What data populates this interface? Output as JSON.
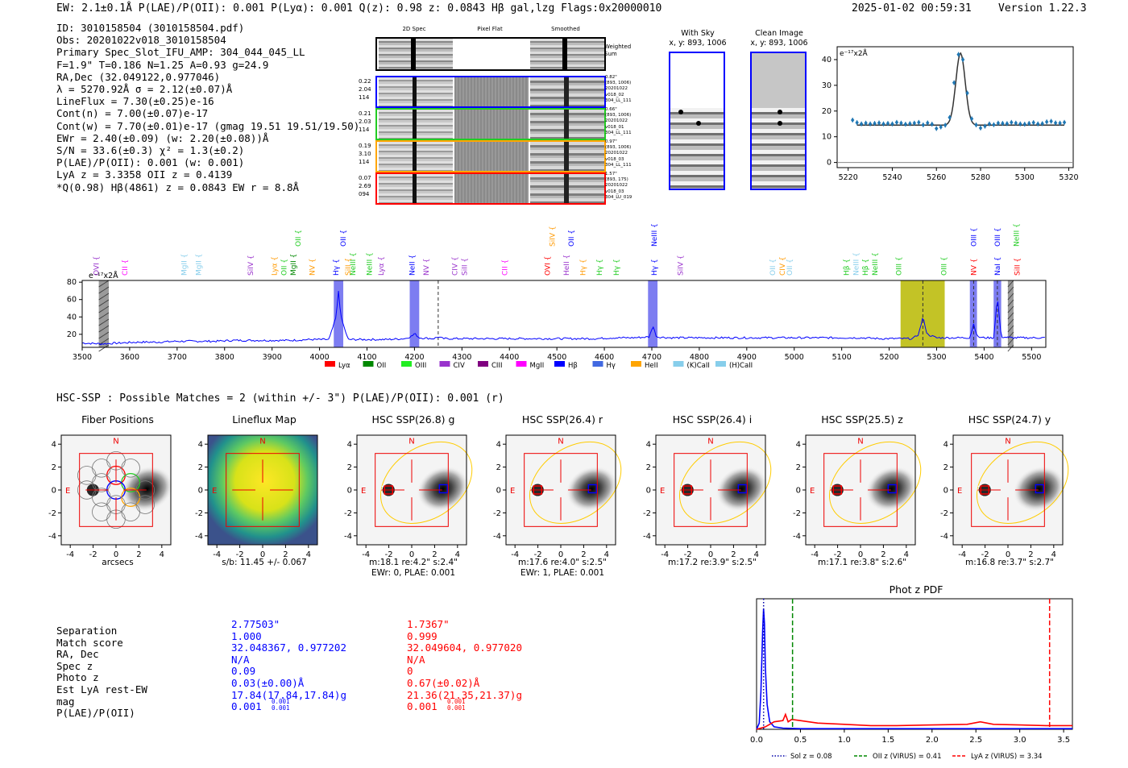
{
  "header": {
    "summary": "EW: 2.1±0.1Å  P(LAE)/P(OII): 0.001  P(Lyα): 0.001  Q(z): 0.98  z: 0.0843  Hβ  gal,lzg  Flags:0x20000010",
    "timestamp": "2025-01-02 00:59:31",
    "version": "Version 1.22.3"
  },
  "detection_info": [
    "ID: 3010158504 (3010158504.pdf)",
    "Obs: 20201022v018_3010158504",
    "Primary Spec_Slot_IFU_AMP: 304_044_045_LL",
    "F=1.9\"  T=0.186  N=1.25  A=0.93  g=24.9",
    "RA,Dec (32.049122,0.977046)",
    "λ = 5270.92Å  σ = 2.12(±0.07)Å",
    "LineFlux = 7.30(±0.25)e-16",
    "Cont(n) = 7.00(±0.07)e-17",
    "Cont(w) = 7.70(±0.01)e-17 (gmag 19.51 19.51/19.50)",
    "EWr = 2.40(±0.09) (w: 2.20(±0.08))Å",
    "S/N = 33.6(±0.3)  χ² = 1.3(±0.2)",
    "P(LAE)/P(OII): 0.001 (w: 0.001)",
    "LyA z = 3.3358  OII z = 0.4139",
    "*Q(0.98) Hβ(4861) z = 0.0843  EW r = 8.8Å"
  ],
  "cutouts": {
    "column_headers": [
      "2D Spec",
      "Pixel Flat",
      "Smoothed"
    ],
    "weighted_sum_label": "Weighted Sum",
    "rows": [
      {
        "left": [
          "0.22",
          "2.04",
          "114"
        ],
        "right": [
          "0.82\"",
          "(893, 1006)",
          "20201022",
          "v018_02",
          "304_LL_111"
        ],
        "color": "#0000ff"
      },
      {
        "left": [
          "0.21",
          "2.03",
          "114"
        ],
        "right": [
          "0.66\"",
          "(893, 1006)",
          "20201022",
          "v018_01",
          "304_LL_111"
        ],
        "color": "#22cc22"
      },
      {
        "left": [
          "0.19",
          "3.10",
          "114"
        ],
        "right": [
          "0.97\"",
          "(893, 1006)",
          "20201022",
          "v018_03",
          "304_LL_111"
        ],
        "color": "#ffa500"
      },
      {
        "left": [
          "0.07",
          "2.69",
          "094"
        ],
        "right": [
          "1.57\"",
          "(893, 175)",
          "20201022",
          "v018_03",
          "304_LU_019"
        ],
        "color": "#ff0000"
      }
    ]
  },
  "sky_panels": [
    {
      "title": "With Sky",
      "coords": "x, y: 893, 1006"
    },
    {
      "title": "Clean Image",
      "coords": "x, y: 893, 1006"
    }
  ],
  "zoom_chart": {
    "unit": "e⁻¹⁷x2Å",
    "x_ticks": [
      "5220",
      "5240",
      "5260",
      "5280",
      "5300",
      "5320"
    ],
    "y_ticks": [
      "0",
      "10",
      "20",
      "30",
      "40"
    ]
  },
  "spectrum_unit": "e⁻¹⁷x2Å",
  "line_legend": [
    "Lyα",
    "OII",
    "OIII",
    "CIV",
    "CIII",
    "MgII",
    "Hβ",
    "Hγ",
    "HeII",
    "(K)CaII",
    "(H)CaII"
  ],
  "hsc_header": "HSC-SSP : Possible Matches = 2 (within +/- 3\")  P(LAE)/P(OII): 0.001 (r)",
  "imaging_panels": [
    {
      "title": "Fiber Positions",
      "caption1": "arcsecs",
      "caption2": ""
    },
    {
      "title": "Lineflux Map",
      "caption1": "s/b: 11.45 +/- 0.067",
      "caption2": ""
    },
    {
      "title": "HSC SSP(26.8) g",
      "caption1": "m:18.1  re:4.2\"  s:2.4\"",
      "caption2": "EWr: 0, PLAE: 0.001"
    },
    {
      "title": "HSC SSP(26.4) r",
      "caption1": "m:17.6  re:4.0\"  s:2.5\"",
      "caption2": "EWr: 1, PLAE: 0.001"
    },
    {
      "title": "HSC SSP(26.4) i",
      "caption1": "m:17.2  re:3.9\"  s:2.5\"",
      "caption2": ""
    },
    {
      "title": "HSC SSP(25.5) z",
      "caption1": "m:17.1  re:3.8\"  s:2.6\"",
      "caption2": ""
    },
    {
      "title": "HSC SSP(24.7) y",
      "caption1": "m:16.8  re:3.7\"  s:2.7\"",
      "caption2": ""
    }
  ],
  "compass": {
    "north": "N",
    "east": "E"
  },
  "img_ticks": [
    "4",
    "2",
    "0",
    "-2",
    "-4"
  ],
  "img_xticks": [
    "-4",
    "-2",
    "0",
    "2",
    "4"
  ],
  "matches": {
    "labels": [
      "Separation",
      "Match score",
      "RA, Dec",
      "Spec z",
      "Photo z",
      "Est LyA rest-EW",
      "mag",
      "P(LAE)/P(OII)"
    ],
    "match1": [
      "2.77503\"",
      "1.000",
      "32.048367, 0.977202",
      "N/A",
      "0.09",
      "0.03(±0.00)Å",
      "17.84(17.84,17.84)g",
      "0.001"
    ],
    "match2": [
      "1.7367\"",
      "0.999",
      "32.049604, 0.977020",
      "N/A",
      "0",
      "0.67(±0.02)Å",
      "21.36(21.35,21.37)g",
      "0.001"
    ],
    "sub_sup": "0.001"
  },
  "chart_data": [
    {
      "type": "line",
      "title": "Full spectrum",
      "ylabel": "e⁻¹⁷x2Å",
      "xlim": [
        3500,
        5530
      ],
      "ylim": [
        5,
        82
      ],
      "x_ticks": [
        3500,
        3600,
        3700,
        3800,
        3900,
        4000,
        4100,
        4200,
        4300,
        4400,
        4500,
        4600,
        4700,
        4800,
        4900,
        5000,
        5100,
        5200,
        5300,
        5400,
        5500
      ],
      "y_ticks": [
        20,
        40,
        60,
        80
      ],
      "x": [
        3500,
        3540,
        3580,
        3620,
        3660,
        3700,
        3740,
        3780,
        3820,
        3860,
        3900,
        3940,
        3980,
        4020,
        4035,
        4040,
        4045,
        4060,
        4100,
        4140,
        4180,
        4195,
        4200,
        4210,
        4240,
        4250,
        4260,
        4300,
        4340,
        4380,
        4420,
        4460,
        4500,
        4540,
        4580,
        4620,
        4660,
        4695,
        4702,
        4710,
        4740,
        4780,
        4820,
        4860,
        4900,
        4940,
        4980,
        5020,
        5060,
        5100,
        5140,
        5180,
        5220,
        5250,
        5262,
        5271,
        5280,
        5300,
        5340,
        5370,
        5378,
        5386,
        5400,
        5420,
        5428,
        5436,
        5460,
        5500,
        5530
      ],
      "values": [
        10,
        9,
        10,
        11,
        11,
        12,
        12,
        12,
        13,
        13,
        13,
        13,
        14,
        14,
        40,
        70,
        40,
        14,
        14,
        14,
        15,
        18,
        21,
        16,
        15,
        17,
        15,
        15,
        15,
        15,
        15,
        15,
        15,
        15,
        15,
        16,
        16,
        17,
        30,
        17,
        16,
        16,
        16,
        16,
        16,
        16,
        16,
        16,
        16,
        16,
        16,
        15,
        15,
        15,
        20,
        40,
        20,
        16,
        16,
        16,
        32,
        17,
        16,
        16,
        63,
        17,
        16,
        16,
        16
      ],
      "shaded_regions": [
        {
          "from": 3535,
          "to": 3556,
          "color": "#888888"
        },
        {
          "from": 4030,
          "to": 4050,
          "color": "#6666ee"
        },
        {
          "from": 4190,
          "to": 4210,
          "color": "#6666ee"
        },
        {
          "from": 4692,
          "to": 4712,
          "color": "#6666ee"
        },
        {
          "from": 5224,
          "to": 5317,
          "color": "#b8b800"
        },
        {
          "from": 5370,
          "to": 5385,
          "color": "#6666ee"
        },
        {
          "from": 5420,
          "to": 5436,
          "color": "#6666ee"
        },
        {
          "from": 5450,
          "to": 5462,
          "color": "#888888"
        }
      ],
      "line_labels": [
        {
          "x": 3530,
          "label": "OVI",
          "color": "#9933cc",
          "row": 1
        },
        {
          "x": 3590,
          "label": "CII",
          "color": "#ff00ff",
          "row": 1
        },
        {
          "x": 3715,
          "label": "MgII",
          "color": "#87ceeb",
          "row": 1
        },
        {
          "x": 3745,
          "label": "MgII",
          "color": "#87ceeb",
          "row": 1
        },
        {
          "x": 3855,
          "label": "SiIV",
          "color": "#9933cc",
          "row": 1
        },
        {
          "x": 3905,
          "label": "Lyα",
          "color": "#ff9900",
          "row": 1
        },
        {
          "x": 3925,
          "label": "OII",
          "color": "#22cc22",
          "row": 1
        },
        {
          "x": 3945,
          "label": "MgII",
          "color": "#008800",
          "row": 1
        },
        {
          "x": 3985,
          "label": "NV",
          "color": "#ff9900",
          "row": 1
        },
        {
          "x": 3955,
          "label": "OII",
          "color": "#22cc22",
          "row": 0
        },
        {
          "x": 4035,
          "label": "Hγ",
          "color": "#0000ff",
          "row": 1
        },
        {
          "x": 4050,
          "label": "OII",
          "color": "#0000ff",
          "row": 0
        },
        {
          "x": 4060,
          "label": "SiII",
          "color": "#ff9900",
          "row": 1
        },
        {
          "x": 4070,
          "label": "NeIII",
          "color": "#22cc22",
          "row": 1
        },
        {
          "x": 4105,
          "label": "NeIII",
          "color": "#22cc22",
          "row": 1
        },
        {
          "x": 4130,
          "label": "Lyα",
          "color": "#9933cc",
          "row": 1
        },
        {
          "x": 4195,
          "label": "NeII",
          "color": "#0000ff",
          "row": 1
        },
        {
          "x": 4225,
          "label": "NV",
          "color": "#9933cc",
          "row": 1
        },
        {
          "x": 4285,
          "label": "CIV",
          "color": "#9933cc",
          "row": 1
        },
        {
          "x": 4305,
          "label": "SiII",
          "color": "#9933cc",
          "row": 1
        },
        {
          "x": 4390,
          "label": "CII",
          "color": "#ff00ff",
          "row": 1
        },
        {
          "x": 4480,
          "label": "OVI",
          "color": "#ff0000",
          "row": 1
        },
        {
          "x": 4490,
          "label": "SiIV",
          "color": "#ff9900",
          "row": 0
        },
        {
          "x": 4520,
          "label": "HeII",
          "color": "#9933cc",
          "row": 1
        },
        {
          "x": 4530,
          "label": "OII",
          "color": "#0000ff",
          "row": 0
        },
        {
          "x": 4555,
          "label": "Hγ",
          "color": "#ff9900",
          "row": 1
        },
        {
          "x": 4590,
          "label": "Hγ",
          "color": "#22cc22",
          "row": 1
        },
        {
          "x": 4625,
          "label": "Hγ",
          "color": "#22cc22",
          "row": 1
        },
        {
          "x": 4705,
          "label": "Hγ",
          "color": "#0000ff",
          "row": 1
        },
        {
          "x": 4705,
          "label": "NeIII",
          "color": "#0000ff",
          "row": 0
        },
        {
          "x": 4760,
          "label": "SiIV",
          "color": "#9933cc",
          "row": 1
        },
        {
          "x": 4955,
          "label": "OII",
          "color": "#87ceeb",
          "row": 1
        },
        {
          "x": 4975,
          "label": "CIV",
          "color": "#ff9900",
          "row": 1
        },
        {
          "x": 4990,
          "label": "OII",
          "color": "#87ceeb",
          "row": 1
        },
        {
          "x": 5110,
          "label": "Hβ",
          "color": "#22cc22",
          "row": 1
        },
        {
          "x": 5130,
          "label": "NeIII",
          "color": "#87ceeb",
          "row": 1
        },
        {
          "x": 5150,
          "label": "Hβ",
          "color": "#22cc22",
          "row": 1
        },
        {
          "x": 5170,
          "label": "NeIII",
          "color": "#22cc22",
          "row": 1
        },
        {
          "x": 5220,
          "label": "OIII",
          "color": "#22cc22",
          "row": 1
        },
        {
          "x": 5315,
          "label": "OIII",
          "color": "#22cc22",
          "row": 1
        },
        {
          "x": 5378,
          "label": "NV",
          "color": "#ff0000",
          "row": 1
        },
        {
          "x": 5378,
          "label": "OIII",
          "color": "#0000ff",
          "row": 0
        },
        {
          "x": 5428,
          "label": "NaI",
          "color": "#0000ff",
          "row": 1
        },
        {
          "x": 5428,
          "label": "OIII",
          "color": "#0000ff",
          "row": 0
        },
        {
          "x": 5470,
          "label": "SiII",
          "color": "#ff0000",
          "row": 1
        },
        {
          "x": 5468,
          "label": "NeIII",
          "color": "#22cc22",
          "row": 0
        }
      ]
    },
    {
      "type": "scatter",
      "title": "Line zoom",
      "ylabel": "e⁻¹⁷x2Å",
      "xlim": [
        5215,
        5322
      ],
      "ylim": [
        -2,
        45
      ],
      "x": [
        5222,
        5224,
        5226,
        5228,
        5230,
        5232,
        5234,
        5236,
        5238,
        5240,
        5242,
        5244,
        5246,
        5248,
        5250,
        5252,
        5254,
        5256,
        5258,
        5260,
        5262,
        5264,
        5266,
        5268,
        5270,
        5272,
        5274,
        5276,
        5278,
        5280,
        5282,
        5284,
        5286,
        5288,
        5290,
        5292,
        5294,
        5296,
        5298,
        5300,
        5302,
        5304,
        5306,
        5308,
        5310,
        5312,
        5314,
        5316,
        5318
      ],
      "values": [
        16.5,
        15.5,
        15,
        15.3,
        15,
        15.2,
        15.4,
        15,
        15.2,
        15,
        15.6,
        15.3,
        14.9,
        15.1,
        15.3,
        15.6,
        14.6,
        15.4,
        14.9,
        13.2,
        13.8,
        14.5,
        17.5,
        31,
        42,
        40,
        27,
        17,
        14.6,
        13.4,
        14.1,
        15.0,
        14.7,
        15.3,
        15.2,
        15.1,
        15.6,
        15.3,
        15.0,
        14.9,
        15.2,
        15.5,
        15.0,
        15.1,
        15.8,
        16,
        15.4,
        15.3,
        15.6
      ],
      "fit_center": 5270.92,
      "fit_sigma": 2.12,
      "fit_continuum": 14.5,
      "fit_peak": 42.5
    },
    {
      "type": "line",
      "title": "Phot z PDF",
      "xlim": [
        0,
        3.6
      ],
      "ylim": [
        0,
        1.05
      ],
      "x_ticks": [
        0.0,
        0.5,
        1.0,
        1.5,
        2.0,
        2.5,
        3.0,
        3.5
      ],
      "series": [
        {
          "name": "blue",
          "color": "#0000ff",
          "x": [
            0.0,
            0.03,
            0.05,
            0.07,
            0.08,
            0.09,
            0.1,
            0.12,
            0.15,
            0.2,
            0.3,
            0.5,
            1.0,
            2.0,
            2.5,
            3.0,
            3.6
          ],
          "values": [
            0.0,
            0.05,
            0.3,
            0.8,
            0.97,
            0.85,
            0.5,
            0.2,
            0.06,
            0.02,
            0.01,
            0.005,
            0.005,
            0.005,
            0.005,
            0.005,
            0.005
          ]
        },
        {
          "name": "red",
          "color": "#ff0000",
          "x": [
            0.0,
            0.1,
            0.2,
            0.3,
            0.33,
            0.36,
            0.4,
            0.5,
            0.7,
            1.0,
            1.3,
            1.6,
            2.0,
            2.4,
            2.55,
            2.7,
            3.0,
            3.3,
            3.6
          ],
          "values": [
            0.0,
            0.02,
            0.06,
            0.07,
            0.12,
            0.06,
            0.08,
            0.07,
            0.05,
            0.04,
            0.03,
            0.03,
            0.035,
            0.04,
            0.06,
            0.04,
            0.035,
            0.03,
            0.03
          ]
        }
      ],
      "vlines": [
        {
          "x": 0.08,
          "color": "#0000aa",
          "style": "dotted"
        },
        {
          "x": 0.41,
          "color": "#008800",
          "style": "dashed"
        },
        {
          "x": 3.34,
          "color": "#ff0000",
          "style": "dashed"
        }
      ],
      "legend": [
        {
          "label": "Sol z = 0.08",
          "color": "#0000aa",
          "style": "dotted"
        },
        {
          "label": "OII z (VIRUS) = 0.41",
          "color": "#008800",
          "style": "dashed"
        },
        {
          "label": "LyA z (VIRUS) = 3.34",
          "color": "#ff0000",
          "style": "dashed"
        }
      ]
    }
  ]
}
